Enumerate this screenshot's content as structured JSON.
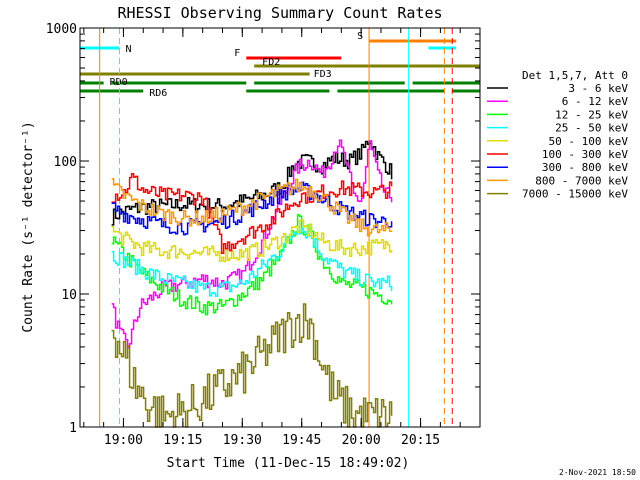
{
  "chart_data": {
    "type": "line",
    "title": "RHESSI Observing Summary Count Rates",
    "xlabel": "Start Time (11-Dec-15 18:49:02)",
    "ylabel": "Count Rate (s⁻¹ detector⁻¹)",
    "y_scale": "log",
    "ylim": [
      1,
      1000
    ],
    "xlim": [
      "18:49:02",
      "20:30:00"
    ],
    "x_ticks": [
      "19:00",
      "19:15",
      "19:30",
      "19:45",
      "20:00",
      "20:15"
    ],
    "y_ticks": [
      "1",
      "10",
      "100",
      "1000"
    ],
    "legend_title": "Det 1,5,7, Att 0",
    "legend_position": "right",
    "series": [
      {
        "name": "3 - 6 keV",
        "color": "#000000",
        "points": [
          [
            "18:57",
            38
          ],
          [
            "19:00",
            42
          ],
          [
            "19:05",
            45
          ],
          [
            "19:15",
            47
          ],
          [
            "19:25",
            46
          ],
          [
            "19:30",
            50
          ],
          [
            "19:35",
            55
          ],
          [
            "19:40",
            65
          ],
          [
            "19:43",
            95
          ],
          [
            "19:46",
            100
          ],
          [
            "19:50",
            92
          ],
          [
            "19:53",
            105
          ],
          [
            "19:57",
            100
          ],
          [
            "20:00",
            115
          ],
          [
            "20:02",
            150
          ],
          [
            "20:04",
            110
          ],
          [
            "20:06",
            95
          ],
          [
            "20:08",
            78
          ]
        ]
      },
      {
        "name": "6 - 12 keV",
        "color": "#ff00ff",
        "points": [
          [
            "18:57",
            8
          ],
          [
            "18:59",
            5
          ],
          [
            "19:01",
            4
          ],
          [
            "19:04",
            8
          ],
          [
            "19:10",
            11
          ],
          [
            "19:15",
            12
          ],
          [
            "19:20",
            13
          ],
          [
            "19:25",
            12
          ],
          [
            "19:30",
            14
          ],
          [
            "19:35",
            25
          ],
          [
            "19:38",
            40
          ],
          [
            "19:41",
            60
          ],
          [
            "19:44",
            90
          ],
          [
            "19:47",
            100
          ],
          [
            "19:50",
            80
          ],
          [
            "19:52",
            100
          ],
          [
            "19:54",
            140
          ],
          [
            "19:56",
            100
          ],
          [
            "19:58",
            55
          ],
          [
            "20:00",
            50
          ],
          [
            "20:02",
            140
          ],
          [
            "20:04",
            80
          ],
          [
            "20:06",
            55
          ],
          [
            "20:08",
            55
          ]
        ]
      },
      {
        "name": "12 - 25 keV",
        "color": "#00ff00",
        "points": [
          [
            "18:57",
            25
          ],
          [
            "19:00",
            20
          ],
          [
            "19:05",
            14
          ],
          [
            "19:10",
            11
          ],
          [
            "19:15",
            9
          ],
          [
            "19:20",
            8
          ],
          [
            "19:25",
            8
          ],
          [
            "19:30",
            10
          ],
          [
            "19:35",
            13
          ],
          [
            "19:40",
            20
          ],
          [
            "19:44",
            35
          ],
          [
            "19:47",
            28
          ],
          [
            "19:50",
            18
          ],
          [
            "19:55",
            12
          ],
          [
            "20:00",
            11
          ],
          [
            "20:04",
            10
          ],
          [
            "20:08",
            9
          ]
        ]
      },
      {
        "name": "25 - 50 keV",
        "color": "#00ffff",
        "points": [
          [
            "18:57",
            20
          ],
          [
            "19:00",
            18
          ],
          [
            "19:05",
            15
          ],
          [
            "19:10",
            13
          ],
          [
            "19:15",
            12
          ],
          [
            "19:20",
            11
          ],
          [
            "19:25",
            11
          ],
          [
            "19:30",
            12
          ],
          [
            "19:35",
            16
          ],
          [
            "19:40",
            22
          ],
          [
            "19:44",
            33
          ],
          [
            "19:47",
            28
          ],
          [
            "19:50",
            20
          ],
          [
            "19:55",
            15
          ],
          [
            "20:00",
            13
          ],
          [
            "20:04",
            12
          ],
          [
            "20:08",
            12
          ]
        ]
      },
      {
        "name": "50 - 100 keV",
        "color": "#dddd00",
        "points": [
          [
            "18:57",
            30
          ],
          [
            "19:00",
            26
          ],
          [
            "19:05",
            22
          ],
          [
            "19:10",
            21
          ],
          [
            "19:15",
            21
          ],
          [
            "19:20",
            20
          ],
          [
            "19:25",
            20
          ],
          [
            "19:30",
            20
          ],
          [
            "19:35",
            22
          ],
          [
            "19:40",
            26
          ],
          [
            "19:44",
            32
          ],
          [
            "19:47",
            30
          ],
          [
            "19:50",
            25
          ],
          [
            "19:55",
            22
          ],
          [
            "20:00",
            22
          ],
          [
            "20:04",
            23
          ],
          [
            "20:08",
            24
          ]
        ]
      },
      {
        "name": "100 - 300 keV",
        "color": "#ff0000",
        "points": [
          [
            "18:57",
            55
          ],
          [
            "19:00",
            58
          ],
          [
            "19:02",
            75
          ],
          [
            "19:05",
            60
          ],
          [
            "19:10",
            55
          ],
          [
            "19:15",
            55
          ],
          [
            "19:20",
            53
          ],
          [
            "19:25",
            22
          ],
          [
            "19:28",
            25
          ],
          [
            "19:33",
            30
          ],
          [
            "19:38",
            37
          ],
          [
            "19:41",
            45
          ],
          [
            "19:45",
            55
          ],
          [
            "19:48",
            55
          ],
          [
            "19:51",
            60
          ],
          [
            "19:55",
            62
          ],
          [
            "20:00",
            60
          ],
          [
            "20:03",
            58
          ],
          [
            "20:06",
            60
          ],
          [
            "20:08",
            62
          ]
        ]
      },
      {
        "name": "300 - 800 keV",
        "color": "#0000ff",
        "points": [
          [
            "18:57",
            45
          ],
          [
            "19:00",
            40
          ],
          [
            "19:05",
            36
          ],
          [
            "19:10",
            33
          ],
          [
            "19:15",
            32
          ],
          [
            "19:20",
            33
          ],
          [
            "19:25",
            35
          ],
          [
            "19:30",
            40
          ],
          [
            "19:35",
            48
          ],
          [
            "19:40",
            57
          ],
          [
            "19:44",
            62
          ],
          [
            "19:48",
            57
          ],
          [
            "19:52",
            48
          ],
          [
            "19:56",
            42
          ],
          [
            "20:00",
            38
          ],
          [
            "20:04",
            35
          ],
          [
            "20:08",
            36
          ]
        ]
      },
      {
        "name": "800 - 7000 keV",
        "color": "#ff9900",
        "points": [
          [
            "18:57",
            65
          ],
          [
            "19:00",
            55
          ],
          [
            "19:05",
            45
          ],
          [
            "19:10",
            40
          ],
          [
            "19:15",
            37
          ],
          [
            "19:20",
            37
          ],
          [
            "19:25",
            40
          ],
          [
            "19:30",
            45
          ],
          [
            "19:35",
            52
          ],
          [
            "19:40",
            60
          ],
          [
            "19:44",
            65
          ],
          [
            "19:48",
            60
          ],
          [
            "19:52",
            48
          ],
          [
            "19:56",
            38
          ],
          [
            "20:00",
            32
          ],
          [
            "20:04",
            30
          ],
          [
            "20:08",
            30
          ]
        ]
      },
      {
        "name": "7000 - 15000 keV",
        "color": "#808000",
        "points": [
          [
            "18:57",
            6
          ],
          [
            "18:59",
            4
          ],
          [
            "19:01",
            3
          ],
          [
            "19:03",
            2
          ],
          [
            "19:06",
            1.5
          ],
          [
            "19:10",
            1.2
          ],
          [
            "19:15",
            1.3
          ],
          [
            "19:20",
            1.6
          ],
          [
            "19:25",
            2
          ],
          [
            "19:30",
            2.5
          ],
          [
            "19:35",
            3.5
          ],
          [
            "19:40",
            5
          ],
          [
            "19:44",
            6.5
          ],
          [
            "19:47",
            6
          ],
          [
            "19:50",
            3
          ],
          [
            "19:53",
            1.7
          ],
          [
            "19:57",
            1.3
          ],
          [
            "20:00",
            1.2
          ],
          [
            "20:04",
            1.2
          ],
          [
            "20:08",
            1.2
          ]
        ]
      }
    ],
    "flags": [
      {
        "label": "N",
        "color": "#00ffff",
        "segments": [
          [
            "18:49",
            "18:59"
          ],
          [
            "20:17",
            "20:24"
          ]
        ]
      },
      {
        "label": "S",
        "color": "#ff8000",
        "segments": [
          [
            "20:02",
            "20:24"
          ]
        ]
      },
      {
        "label": "F",
        "color": "#ff0000",
        "segments": [
          [
            "19:31",
            "19:55"
          ]
        ]
      },
      {
        "label": "FD2",
        "color": "#808000",
        "segments": [
          [
            "19:33",
            "20:30"
          ]
        ]
      },
      {
        "label": "FD3",
        "color": "#808000",
        "segments": [
          [
            "18:49",
            "19:47"
          ]
        ]
      },
      {
        "label": "RD0",
        "color": "#008000",
        "segments": [
          [
            "18:49",
            "18:55"
          ],
          [
            "18:57",
            "19:31"
          ],
          [
            "19:33",
            "20:11"
          ],
          [
            "20:13",
            "20:30"
          ]
        ]
      },
      {
        "label": "RD6",
        "color": "#008000",
        "segments": [
          [
            "18:49",
            "19:05"
          ],
          [
            "19:31",
            "19:52"
          ],
          [
            "19:54",
            "20:21"
          ],
          [
            "20:23",
            "20:30"
          ]
        ]
      }
    ],
    "vlines": [
      {
        "time": "18:49:02",
        "color": "#00ffff",
        "dashed": false
      },
      {
        "time": "18:59",
        "color": "#00ffff",
        "dashed": true
      },
      {
        "time": "20:12",
        "color": "#00ffff",
        "dashed": false
      },
      {
        "time": "18:54",
        "color": "#ff8000",
        "dashed": false
      },
      {
        "time": "20:02",
        "color": "#ff8000",
        "dashed": false
      },
      {
        "time": "20:21",
        "color": "#ff8000",
        "dashed": true
      },
      {
        "time": "20:23",
        "color": "#ff0000",
        "dashed": true
      }
    ]
  },
  "footer_date": "2-Nov-2021 18:50"
}
